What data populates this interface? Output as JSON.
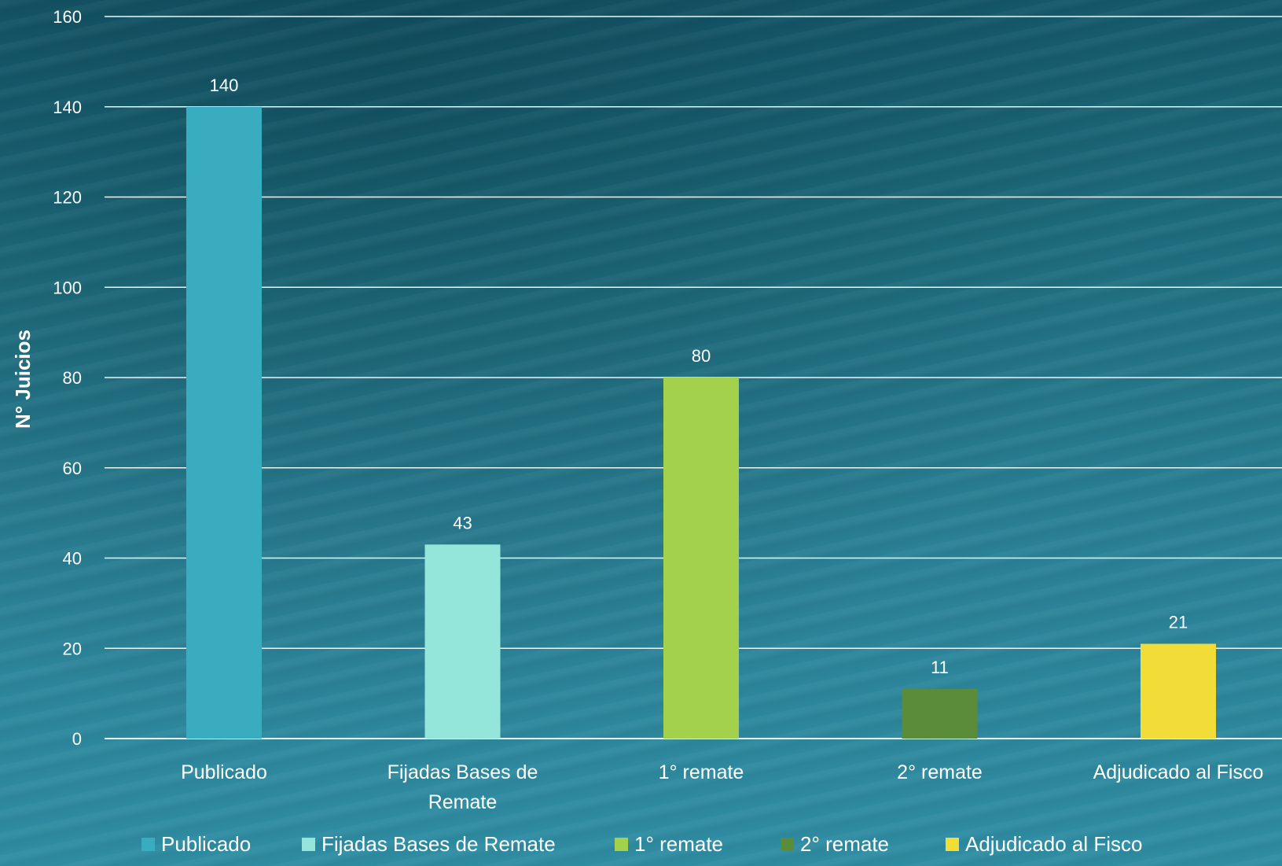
{
  "chart_data": {
    "type": "bar",
    "title": "",
    "xlabel": "",
    "ylabel": "N° Juicios",
    "ylim": [
      0,
      160
    ],
    "yticks": [
      0,
      20,
      40,
      60,
      80,
      100,
      120,
      140,
      160
    ],
    "tick_labels": [
      "0",
      "20",
      "40",
      "60",
      "80",
      "100",
      "120",
      "140",
      "160"
    ],
    "categories": [
      "Publicado",
      "Fijadas Bases de Remate",
      "1° remate",
      "2° remate",
      "Adjudicado al Fisco"
    ],
    "category_labels": [
      [
        "Publicado"
      ],
      [
        "Fijadas Bases de",
        "Remate"
      ],
      [
        "1° remate"
      ],
      [
        "2° remate"
      ],
      [
        "Adjudicado al Fisco"
      ]
    ],
    "values": [
      140,
      43,
      80,
      11,
      21
    ],
    "data_labels": [
      "140",
      "43",
      "80",
      "11",
      "21"
    ],
    "colors": [
      "#3aacbf",
      "#93e6d9",
      "#a4d14c",
      "#5b8c3a",
      "#f2dc37"
    ],
    "grid": true,
    "legend_position": "bottom",
    "legend": [
      "Publicado",
      "Fijadas Bases de Remate",
      "1° remate",
      "2° remate",
      "Adjudicado al Fisco"
    ]
  }
}
